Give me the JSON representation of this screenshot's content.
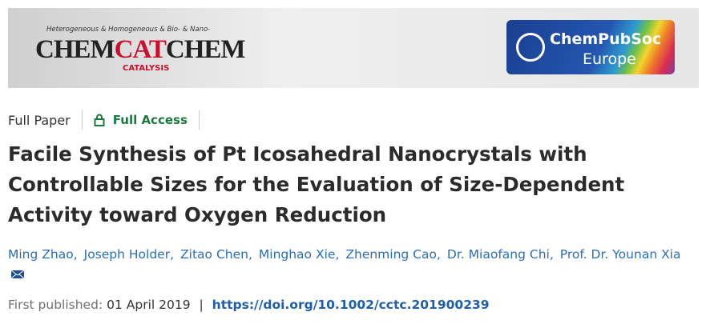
{
  "banner": {
    "tagline": "Heterogeneous & Homogeneous & Bio- & Nano-",
    "logo_parts": [
      "CHEM",
      "CAT",
      "CHEM"
    ],
    "subtitle": "CATALYSIS",
    "society": "ChemPubSoc",
    "society_region": "Europe"
  },
  "article": {
    "type": "Full Paper",
    "access": "Full Access",
    "title": "Facile Synthesis of Pt Icosahedral Nanocrystals with Controllable Sizes for the Evaluation of Size-Dependent Activity toward Oxygen Reduction",
    "authors": [
      "Ming Zhao",
      "Joseph Holder",
      "Zitao Chen",
      "Minghao Xie",
      "Zhenming Cao",
      "Dr. Miaofang Chi",
      "Prof. Dr. Younan Xia"
    ],
    "author_separator": ",",
    "published_label": "First published:",
    "published_date": "01 April 2019",
    "separator": "|",
    "doi": "https://doi.org/10.1002/cctc.201900239"
  }
}
